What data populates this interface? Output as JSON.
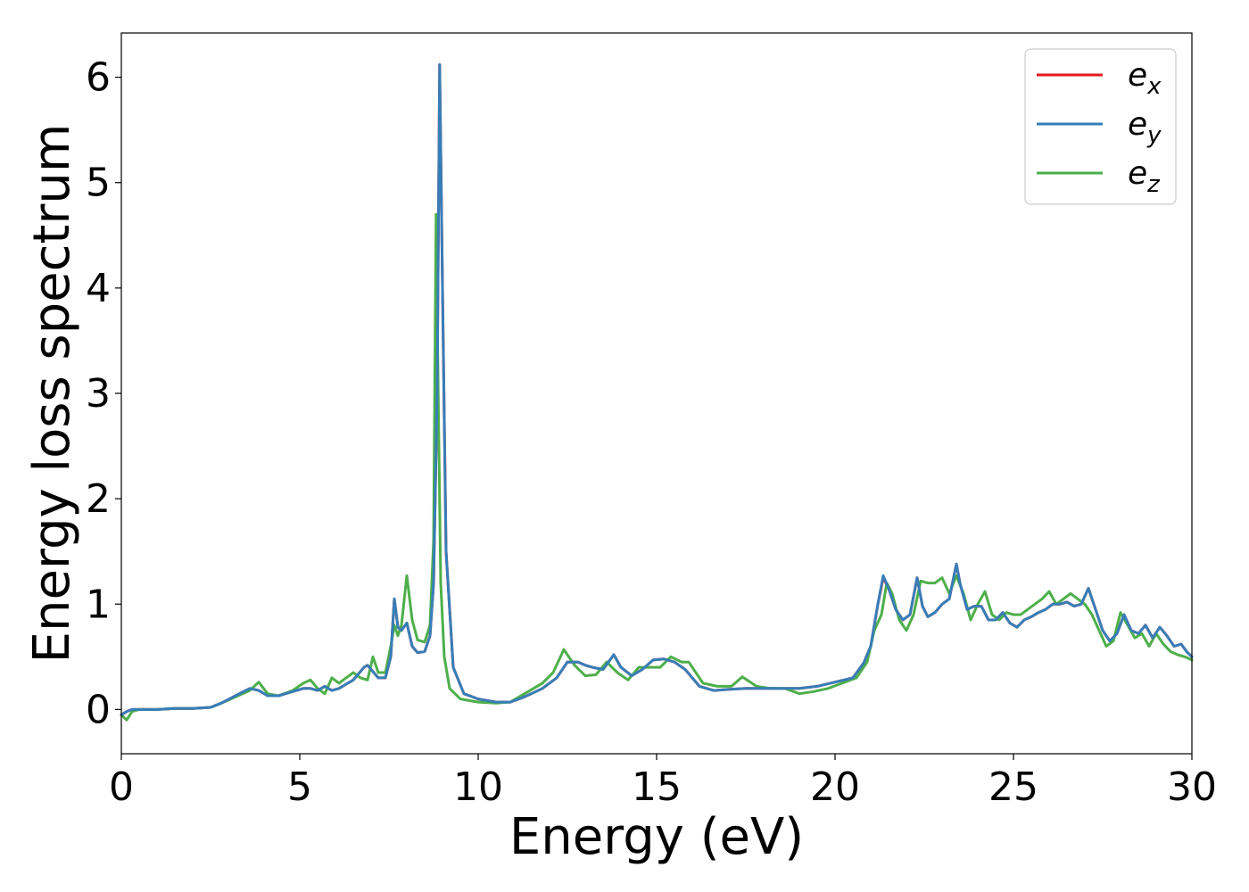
{
  "chart_data": {
    "type": "line",
    "xlabel": "Energy (eV)",
    "ylabel": "Energy loss spectrum",
    "xlim": [
      0,
      30
    ],
    "ylim": [
      -0.42,
      6.42
    ],
    "xticks": [
      0,
      5,
      10,
      15,
      20,
      25,
      30
    ],
    "yticks": [
      0,
      1,
      2,
      3,
      4,
      5,
      6
    ],
    "grid": false,
    "legend_position": "top-right",
    "series": [
      {
        "name": "e_x",
        "label_base": "e",
        "label_sub": "x",
        "color": "#e41a1c",
        "x": [
          0,
          0.15,
          0.3,
          0.5,
          1,
          1.5,
          2,
          2.5,
          2.8,
          3.2,
          3.6,
          3.85,
          4.1,
          4.4,
          4.8,
          5.1,
          5.3,
          5.5,
          5.7,
          5.9,
          6.1,
          6.3,
          6.5,
          6.8,
          6.9,
          7.05,
          7.2,
          7.4,
          7.55,
          7.65,
          7.75,
          7.85,
          8.0,
          8.15,
          8.3,
          8.5,
          8.65,
          8.75,
          8.85,
          8.92,
          9.0,
          9.1,
          9.3,
          9.6,
          10,
          10.5,
          10.9,
          11.3,
          11.8,
          12.2,
          12.5,
          12.8,
          13.0,
          13.2,
          13.5,
          13.8,
          14.0,
          14.3,
          14.6,
          14.9,
          15.2,
          15.5,
          15.8,
          16.2,
          16.6,
          17.0,
          17.5,
          18.0,
          18.5,
          19.0,
          19.5,
          20.0,
          20.5,
          20.8,
          21.0,
          21.2,
          21.35,
          21.5,
          21.7,
          21.9,
          22.1,
          22.3,
          22.45,
          22.6,
          22.8,
          23.0,
          23.2,
          23.4,
          23.5,
          23.7,
          23.9,
          24.1,
          24.3,
          24.5,
          24.7,
          24.9,
          25.1,
          25.3,
          25.5,
          25.7,
          25.9,
          26.1,
          26.3,
          26.5,
          26.7,
          26.9,
          27.1,
          27.3,
          27.5,
          27.7,
          27.9,
          28.1,
          28.3,
          28.5,
          28.7,
          28.9,
          29.1,
          29.3,
          29.5,
          29.7,
          29.85,
          30
        ],
        "y": [
          -0.05,
          -0.02,
          0.0,
          0.0,
          0.0,
          0.01,
          0.01,
          0.02,
          0.06,
          0.13,
          0.2,
          0.18,
          0.13,
          0.13,
          0.17,
          0.2,
          0.2,
          0.18,
          0.22,
          0.18,
          0.2,
          0.24,
          0.28,
          0.4,
          0.42,
          0.36,
          0.3,
          0.3,
          0.5,
          1.05,
          0.78,
          0.75,
          0.82,
          0.6,
          0.54,
          0.55,
          0.7,
          1.2,
          3.0,
          6.12,
          4.0,
          1.5,
          0.4,
          0.15,
          0.1,
          0.07,
          0.07,
          0.12,
          0.2,
          0.3,
          0.45,
          0.45,
          0.42,
          0.4,
          0.38,
          0.52,
          0.4,
          0.32,
          0.38,
          0.47,
          0.48,
          0.45,
          0.38,
          0.22,
          0.18,
          0.19,
          0.2,
          0.2,
          0.2,
          0.2,
          0.22,
          0.26,
          0.3,
          0.44,
          0.6,
          1.0,
          1.25,
          1.15,
          0.95,
          0.85,
          0.9,
          1.25,
          0.98,
          0.88,
          0.92,
          1.0,
          1.05,
          1.38,
          1.2,
          0.95,
          0.98,
          0.98,
          0.85,
          0.85,
          0.92,
          0.82,
          0.78,
          0.85,
          0.88,
          0.92,
          0.95,
          1.0,
          1.0,
          1.02,
          0.98,
          1.0,
          1.15,
          0.95,
          0.75,
          0.65,
          0.72,
          0.9,
          0.75,
          0.72,
          0.8,
          0.68,
          0.78,
          0.7,
          0.6,
          0.62,
          0.55,
          0.5
        ]
      },
      {
        "name": "e_y",
        "label_base": "e",
        "label_sub": "y",
        "color": "#377eb8",
        "x": [
          0,
          0.15,
          0.3,
          0.5,
          1,
          1.5,
          2,
          2.5,
          2.8,
          3.2,
          3.6,
          3.85,
          4.1,
          4.4,
          4.8,
          5.1,
          5.3,
          5.5,
          5.7,
          5.9,
          6.1,
          6.3,
          6.5,
          6.8,
          6.9,
          7.05,
          7.2,
          7.4,
          7.55,
          7.65,
          7.75,
          7.85,
          8.0,
          8.15,
          8.3,
          8.5,
          8.65,
          8.75,
          8.85,
          8.92,
          9.0,
          9.1,
          9.3,
          9.6,
          10,
          10.5,
          10.9,
          11.3,
          11.8,
          12.2,
          12.5,
          12.8,
          13.0,
          13.2,
          13.5,
          13.8,
          14.0,
          14.3,
          14.6,
          14.9,
          15.2,
          15.5,
          15.8,
          16.2,
          16.6,
          17.0,
          17.5,
          18.0,
          18.5,
          19.0,
          19.5,
          20.0,
          20.5,
          20.8,
          21.0,
          21.2,
          21.35,
          21.5,
          21.7,
          21.9,
          22.1,
          22.3,
          22.45,
          22.6,
          22.8,
          23.0,
          23.2,
          23.4,
          23.5,
          23.7,
          23.9,
          24.1,
          24.3,
          24.5,
          24.7,
          24.9,
          25.1,
          25.3,
          25.5,
          25.7,
          25.9,
          26.1,
          26.3,
          26.5,
          26.7,
          26.9,
          27.1,
          27.3,
          27.5,
          27.7,
          27.9,
          28.1,
          28.3,
          28.5,
          28.7,
          28.9,
          29.1,
          29.3,
          29.5,
          29.7,
          29.85,
          30
        ],
        "y": [
          -0.05,
          -0.02,
          0.0,
          0.0,
          0.0,
          0.01,
          0.01,
          0.02,
          0.06,
          0.13,
          0.2,
          0.18,
          0.13,
          0.13,
          0.17,
          0.2,
          0.2,
          0.18,
          0.22,
          0.18,
          0.2,
          0.24,
          0.28,
          0.4,
          0.42,
          0.36,
          0.3,
          0.3,
          0.5,
          1.05,
          0.78,
          0.75,
          0.82,
          0.6,
          0.54,
          0.55,
          0.7,
          1.2,
          3.0,
          6.12,
          4.0,
          1.5,
          0.4,
          0.15,
          0.1,
          0.07,
          0.07,
          0.12,
          0.2,
          0.3,
          0.45,
          0.45,
          0.42,
          0.4,
          0.38,
          0.52,
          0.4,
          0.32,
          0.38,
          0.47,
          0.48,
          0.45,
          0.38,
          0.22,
          0.18,
          0.19,
          0.2,
          0.2,
          0.2,
          0.2,
          0.22,
          0.26,
          0.3,
          0.44,
          0.6,
          1.0,
          1.27,
          1.15,
          0.95,
          0.85,
          0.9,
          1.25,
          0.98,
          0.88,
          0.92,
          1.0,
          1.05,
          1.38,
          1.2,
          0.95,
          0.98,
          0.98,
          0.85,
          0.85,
          0.92,
          0.82,
          0.78,
          0.85,
          0.88,
          0.92,
          0.95,
          1.0,
          1.0,
          1.02,
          0.98,
          1.0,
          1.15,
          0.95,
          0.75,
          0.65,
          0.72,
          0.9,
          0.75,
          0.72,
          0.8,
          0.68,
          0.78,
          0.7,
          0.6,
          0.62,
          0.55,
          0.5
        ]
      },
      {
        "name": "e_z",
        "label_base": "e",
        "label_sub": "z",
        "color": "#4daf4a",
        "x": [
          0,
          0.15,
          0.3,
          0.5,
          1,
          1.5,
          2,
          2.5,
          2.8,
          3.2,
          3.6,
          3.85,
          4.1,
          4.4,
          4.8,
          5.1,
          5.3,
          5.5,
          5.7,
          5.9,
          6.1,
          6.3,
          6.5,
          6.7,
          6.9,
          7.05,
          7.2,
          7.4,
          7.55,
          7.65,
          7.75,
          7.85,
          8.0,
          8.15,
          8.3,
          8.5,
          8.65,
          8.75,
          8.82,
          8.88,
          8.95,
          9.05,
          9.2,
          9.5,
          10,
          10.5,
          10.9,
          11.3,
          11.8,
          12.1,
          12.4,
          12.7,
          13.0,
          13.3,
          13.6,
          13.9,
          14.2,
          14.5,
          14.8,
          15.1,
          15.4,
          15.7,
          15.9,
          16.3,
          16.7,
          17.1,
          17.4,
          17.8,
          18.2,
          18.6,
          19.0,
          19.4,
          19.8,
          20.2,
          20.6,
          20.9,
          21.1,
          21.3,
          21.45,
          21.6,
          21.8,
          22.0,
          22.2,
          22.4,
          22.6,
          22.8,
          23.0,
          23.2,
          23.4,
          23.6,
          23.8,
          24.0,
          24.2,
          24.4,
          24.6,
          24.8,
          25.0,
          25.2,
          25.4,
          25.6,
          25.8,
          26.0,
          26.2,
          26.4,
          26.6,
          26.8,
          27.0,
          27.2,
          27.4,
          27.6,
          27.8,
          28.0,
          28.2,
          28.4,
          28.6,
          28.8,
          29.0,
          29.2,
          29.4,
          29.6,
          29.8,
          30
        ],
        "y": [
          -0.05,
          -0.1,
          -0.02,
          0.0,
          0.0,
          0.01,
          0.01,
          0.02,
          0.06,
          0.12,
          0.18,
          0.26,
          0.15,
          0.13,
          0.18,
          0.25,
          0.28,
          0.2,
          0.15,
          0.3,
          0.25,
          0.3,
          0.35,
          0.3,
          0.28,
          0.5,
          0.35,
          0.35,
          0.6,
          0.8,
          0.7,
          0.8,
          1.27,
          0.85,
          0.66,
          0.64,
          0.8,
          1.6,
          4.7,
          3.0,
          1.2,
          0.5,
          0.2,
          0.1,
          0.07,
          0.06,
          0.07,
          0.15,
          0.25,
          0.35,
          0.57,
          0.42,
          0.32,
          0.33,
          0.45,
          0.35,
          0.28,
          0.4,
          0.4,
          0.4,
          0.5,
          0.45,
          0.45,
          0.25,
          0.22,
          0.22,
          0.31,
          0.22,
          0.2,
          0.2,
          0.15,
          0.17,
          0.2,
          0.25,
          0.3,
          0.45,
          0.75,
          0.9,
          1.2,
          1.1,
          0.85,
          0.75,
          0.9,
          1.22,
          1.2,
          1.2,
          1.25,
          1.1,
          1.27,
          1.1,
          0.85,
          1.0,
          1.12,
          0.9,
          0.85,
          0.92,
          0.9,
          0.9,
          0.95,
          1.0,
          1.05,
          1.12,
          1.0,
          1.05,
          1.1,
          1.05,
          1.0,
          0.9,
          0.75,
          0.6,
          0.65,
          0.92,
          0.8,
          0.68,
          0.72,
          0.6,
          0.72,
          0.62,
          0.55,
          0.52,
          0.5,
          0.47
        ]
      }
    ]
  }
}
